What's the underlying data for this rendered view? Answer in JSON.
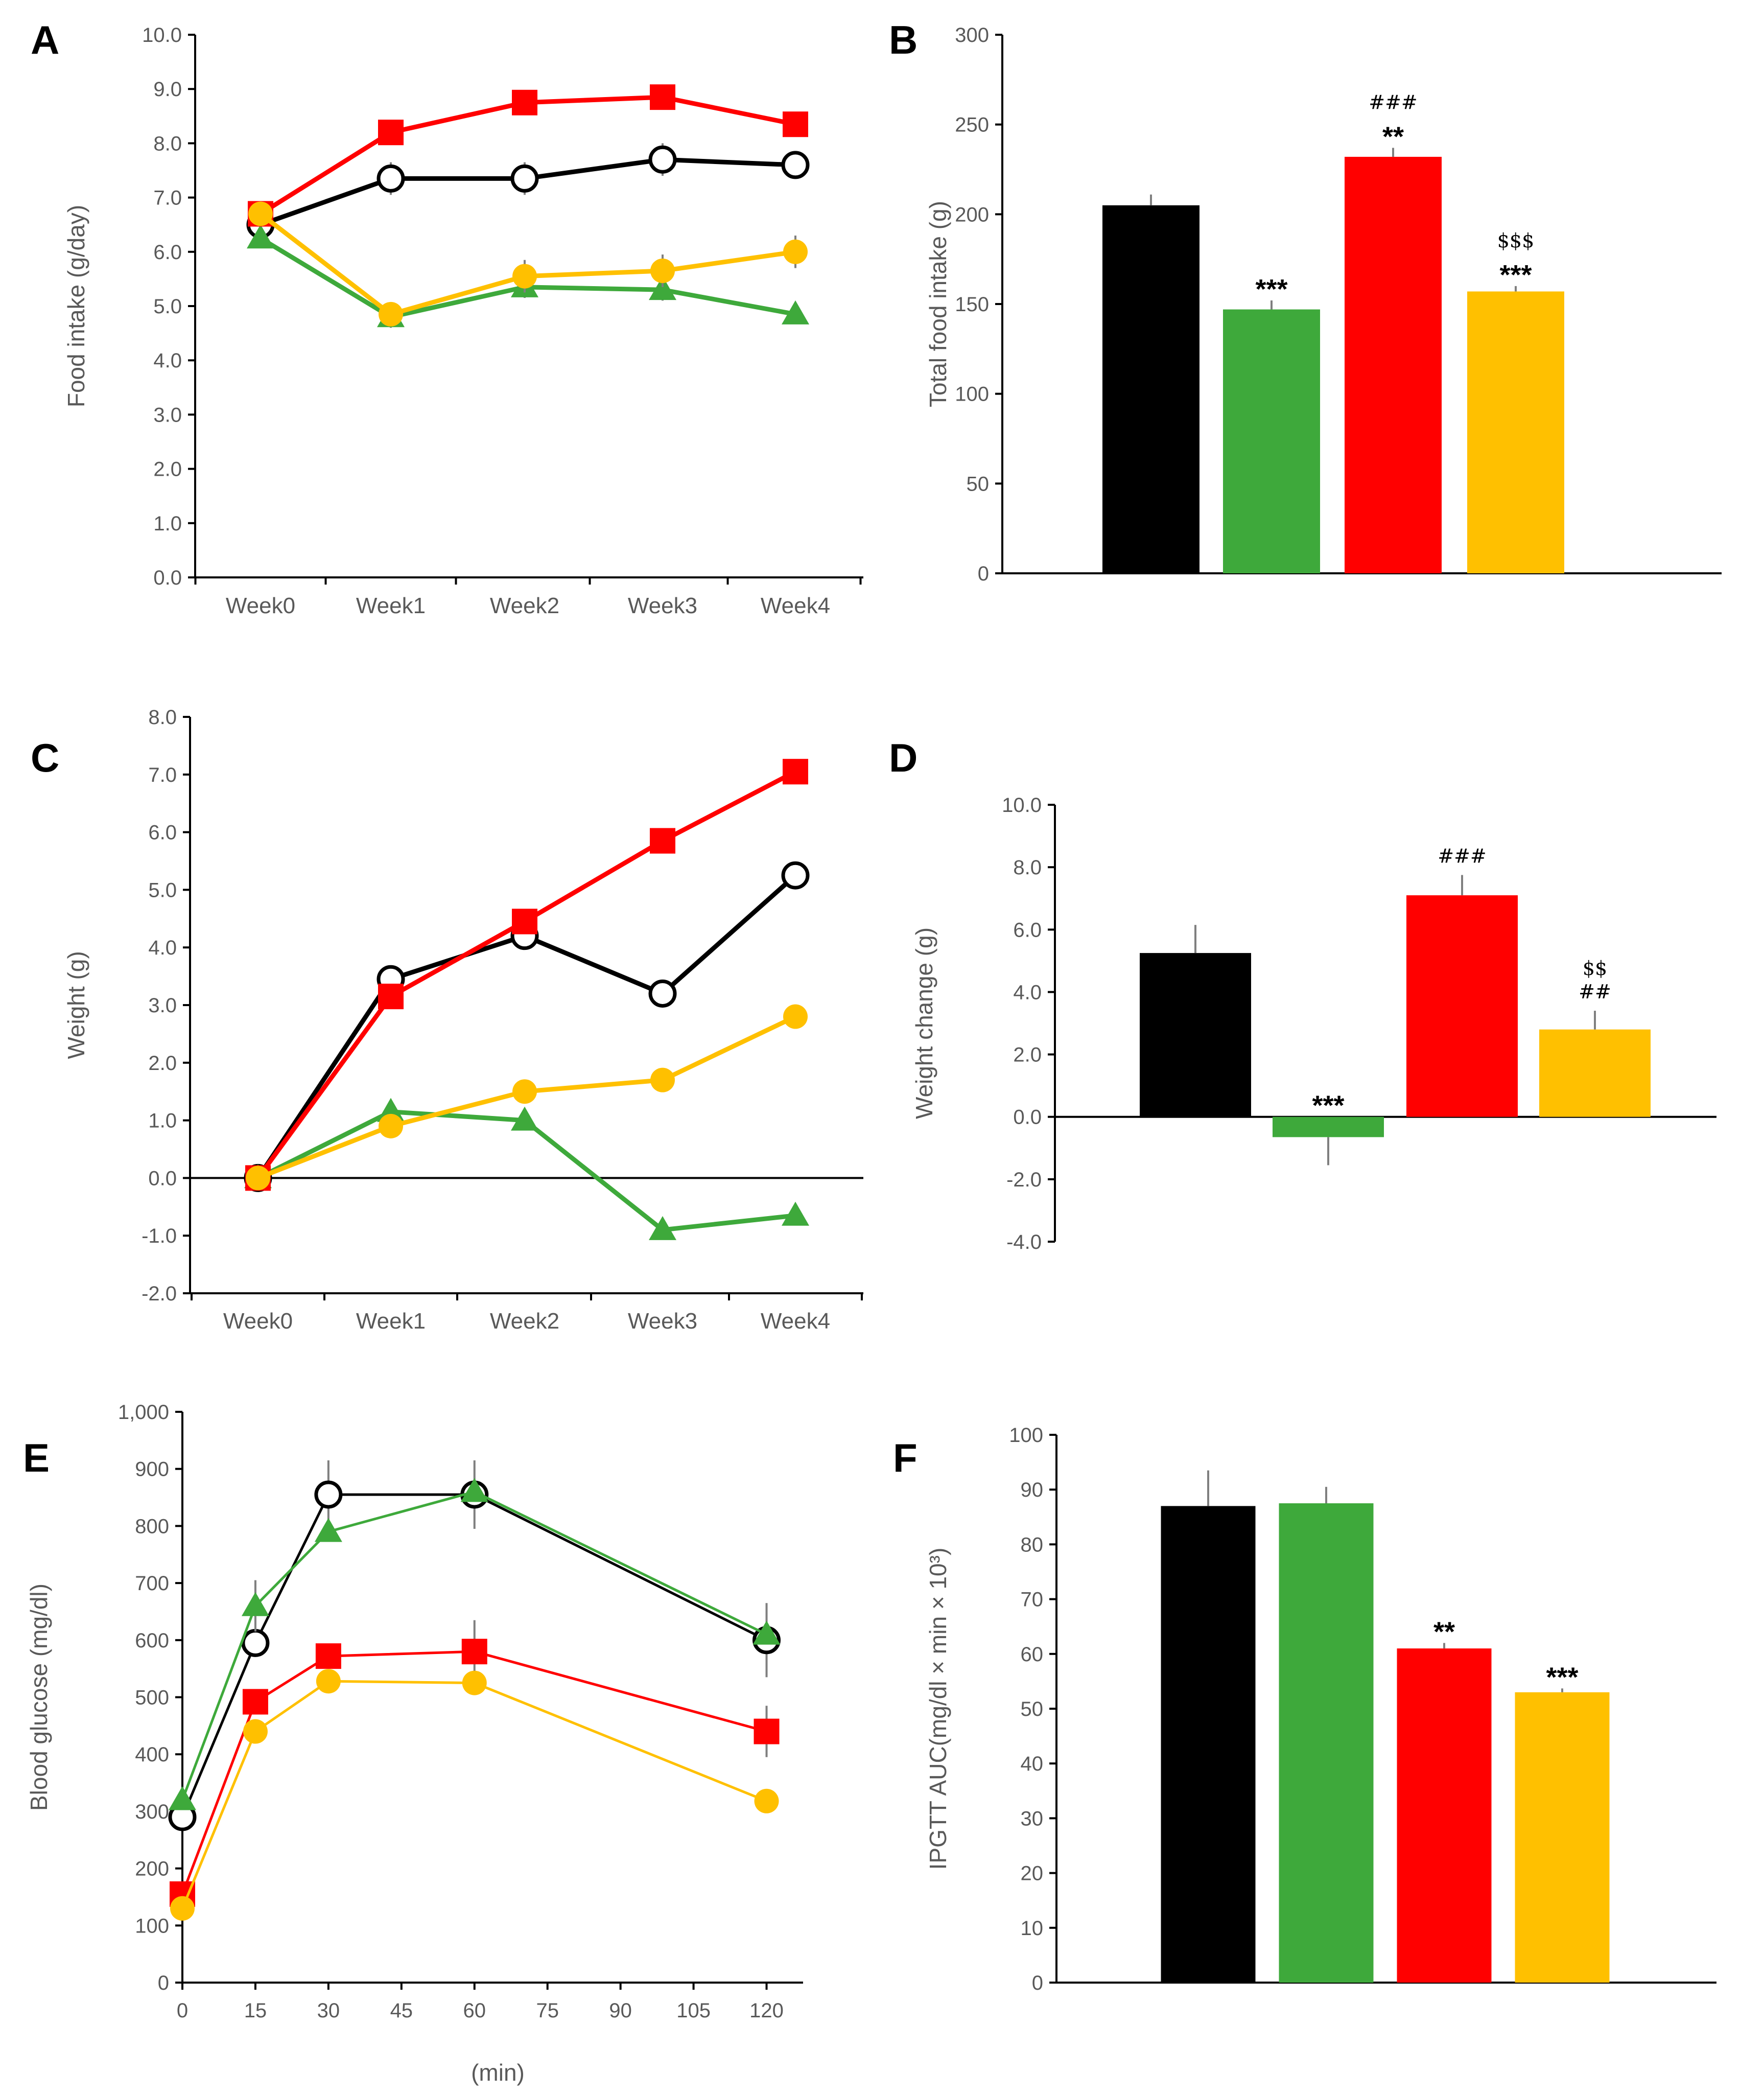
{
  "colors": {
    "control": "#000000",
    "group2": "#3ea93b",
    "group3": "#ff0000",
    "group4": "#ffc000",
    "axis": "#000000",
    "text": "#595959"
  },
  "chart_data": [
    {
      "panel": "A",
      "type": "line",
      "categories": [
        "Week0",
        "Week1",
        "Week2",
        "Week3",
        "Week4"
      ],
      "ylabel": "Food intake (g/day)",
      "ylim": [
        0,
        10
      ],
      "yticks": [
        0,
        1,
        2,
        3,
        4,
        5,
        6,
        7,
        8,
        9,
        10
      ],
      "ytick_labels": [
        "0.0",
        "1.0",
        "2.0",
        "3.0",
        "4.0",
        "5.0",
        "6.0",
        "7.0",
        "8.0",
        "9.0",
        "10.0"
      ],
      "series": [
        {
          "color": "#000000",
          "marker": "circle-open",
          "values": [
            6.5,
            7.35,
            7.35,
            7.7,
            7.6
          ],
          "err": [
            0.1,
            0.3,
            0.3,
            0.3,
            0.2
          ]
        },
        {
          "color": "#3ea93b",
          "marker": "triangle",
          "values": [
            6.25,
            4.8,
            5.35,
            5.3,
            4.85
          ],
          "err": [
            0.1,
            0.2,
            0.2,
            0.2,
            0.1
          ]
        },
        {
          "color": "#ff0000",
          "marker": "square",
          "values": [
            6.7,
            8.2,
            8.75,
            8.85,
            8.35
          ],
          "err": [
            0.1,
            0.2,
            0.1,
            0.1,
            0.2
          ]
        },
        {
          "color": "#ffc000",
          "marker": "circle",
          "values": [
            6.7,
            4.85,
            5.55,
            5.65,
            6.0
          ],
          "err": [
            0.1,
            0.2,
            0.3,
            0.3,
            0.3
          ]
        }
      ]
    },
    {
      "panel": "B",
      "type": "bar",
      "ylabel": "Total food intake (g)",
      "ylim": [
        0,
        300
      ],
      "yticks": [
        0,
        50,
        100,
        150,
        200,
        250,
        300
      ],
      "ytick_labels": [
        "0",
        "50",
        "100",
        "150",
        "200",
        "250",
        "300"
      ],
      "bars": [
        {
          "color": "#000000",
          "value": 205,
          "err": 6,
          "labels": []
        },
        {
          "color": "#3ea93b",
          "value": 147,
          "err": 5,
          "labels": [
            "***"
          ]
        },
        {
          "color": "#ff0000",
          "value": 232,
          "err": 5,
          "labels": [
            "###",
            "**"
          ]
        },
        {
          "color": "#ffc000",
          "value": 157,
          "err": 3,
          "labels": [
            "$$$",
            "***"
          ]
        }
      ]
    },
    {
      "panel": "C",
      "type": "line",
      "categories": [
        "Week0",
        "Week1",
        "Week2",
        "Week3",
        "Week4"
      ],
      "ylabel": "Weight (g)",
      "ylim": [
        -2,
        8
      ],
      "yticks": [
        -2,
        -1,
        0,
        1,
        2,
        3,
        4,
        5,
        6,
        7,
        8
      ],
      "ytick_labels": [
        "-2.0",
        "-1.0",
        "0.0",
        "1.0",
        "2.0",
        "3.0",
        "4.0",
        "5.0",
        "6.0",
        "7.0",
        "8.0"
      ],
      "zero_line": true,
      "series": [
        {
          "color": "#000000",
          "marker": "circle-open",
          "values": [
            0,
            3.45,
            4.2,
            3.2,
            5.25
          ],
          "err": [
            0,
            0,
            0,
            0,
            0
          ]
        },
        {
          "color": "#3ea93b",
          "marker": "triangle",
          "values": [
            0,
            1.15,
            1.0,
            -0.9,
            -0.65
          ],
          "err": [
            0,
            0,
            0,
            0,
            0
          ]
        },
        {
          "color": "#ff0000",
          "marker": "square",
          "values": [
            0,
            3.15,
            4.45,
            5.85,
            7.05
          ],
          "err": [
            0,
            0,
            0,
            0,
            0
          ]
        },
        {
          "color": "#ffc000",
          "marker": "circle",
          "values": [
            0,
            0.9,
            1.5,
            1.7,
            2.8
          ],
          "err": [
            0,
            0,
            0,
            0,
            0
          ]
        }
      ]
    },
    {
      "panel": "D",
      "type": "bar",
      "ylabel": "Weight change (g)",
      "ylim": [
        -4,
        10
      ],
      "yticks": [
        -4,
        -2,
        0,
        2,
        4,
        6,
        8,
        10
      ],
      "ytick_labels": [
        "-4.0",
        "-2.0",
        "0.0",
        "2.0",
        "4.0",
        "6.0",
        "8.0",
        "10.0"
      ],
      "bars": [
        {
          "color": "#000000",
          "value": 5.25,
          "err": 0.9,
          "labels": []
        },
        {
          "color": "#3ea93b",
          "value": -0.65,
          "err": 0.9,
          "labels": [
            "***"
          ]
        },
        {
          "color": "#ff0000",
          "value": 7.1,
          "err": 0.65,
          "labels": [
            "###"
          ]
        },
        {
          "color": "#ffc000",
          "value": 2.8,
          "err": 0.6,
          "labels": [
            "$$",
            "##"
          ]
        }
      ]
    },
    {
      "panel": "E",
      "type": "line",
      "x": [
        0,
        15,
        30,
        60,
        120
      ],
      "xlabel": "(min)",
      "xlim": [
        0,
        127.5
      ],
      "xticks": [
        0,
        15,
        30,
        45,
        60,
        75,
        90,
        105,
        120
      ],
      "xtick_labels": [
        "0",
        "15",
        "30",
        "45",
        "60",
        "75",
        "90",
        "105",
        "120"
      ],
      "ylabel": "Blood glucose  (mg/dl)",
      "ylim": [
        0,
        1000
      ],
      "yticks": [
        0,
        100,
        200,
        300,
        400,
        500,
        600,
        700,
        800,
        900,
        1000
      ],
      "ytick_labels": [
        "0",
        "100",
        "200",
        "300",
        "400",
        "500",
        "600",
        "700",
        "800",
        "900",
        "1,000"
      ],
      "series": [
        {
          "color": "#000000",
          "marker": "circle-open",
          "values": [
            290,
            595,
            855,
            855,
            600
          ],
          "err": [
            0,
            0,
            60,
            60,
            65
          ]
        },
        {
          "color": "#3ea93b",
          "marker": "triangle",
          "values": [
            320,
            660,
            790,
            860,
            610
          ],
          "err": [
            0,
            45,
            0,
            0,
            0
          ]
        },
        {
          "color": "#ff0000",
          "marker": "square",
          "values": [
            155,
            492,
            572,
            580,
            440
          ],
          "err": [
            0,
            0,
            0,
            55,
            45
          ]
        },
        {
          "color": "#ffc000",
          "marker": "circle",
          "values": [
            130,
            440,
            528,
            525,
            318
          ],
          "err": [
            0,
            0,
            0,
            0,
            0
          ]
        }
      ]
    },
    {
      "panel": "F",
      "type": "bar",
      "ylabel": "IPGTT AUC(mg/dl × min × 10³)",
      "ylim": [
        0,
        100
      ],
      "yticks": [
        0,
        10,
        20,
        30,
        40,
        50,
        60,
        70,
        80,
        90,
        100
      ],
      "ytick_labels": [
        "0",
        "10",
        "20",
        "30",
        "40",
        "50",
        "60",
        "70",
        "80",
        "90",
        "100"
      ],
      "bars": [
        {
          "color": "#000000",
          "value": 87,
          "err": 6.5,
          "labels": []
        },
        {
          "color": "#3ea93b",
          "value": 87.5,
          "err": 3,
          "labels": []
        },
        {
          "color": "#ff0000",
          "value": 61,
          "err": 1,
          "labels": [
            "**"
          ]
        },
        {
          "color": "#ffc000",
          "value": 53,
          "err": 0.7,
          "labels": [
            "***"
          ]
        }
      ]
    }
  ]
}
